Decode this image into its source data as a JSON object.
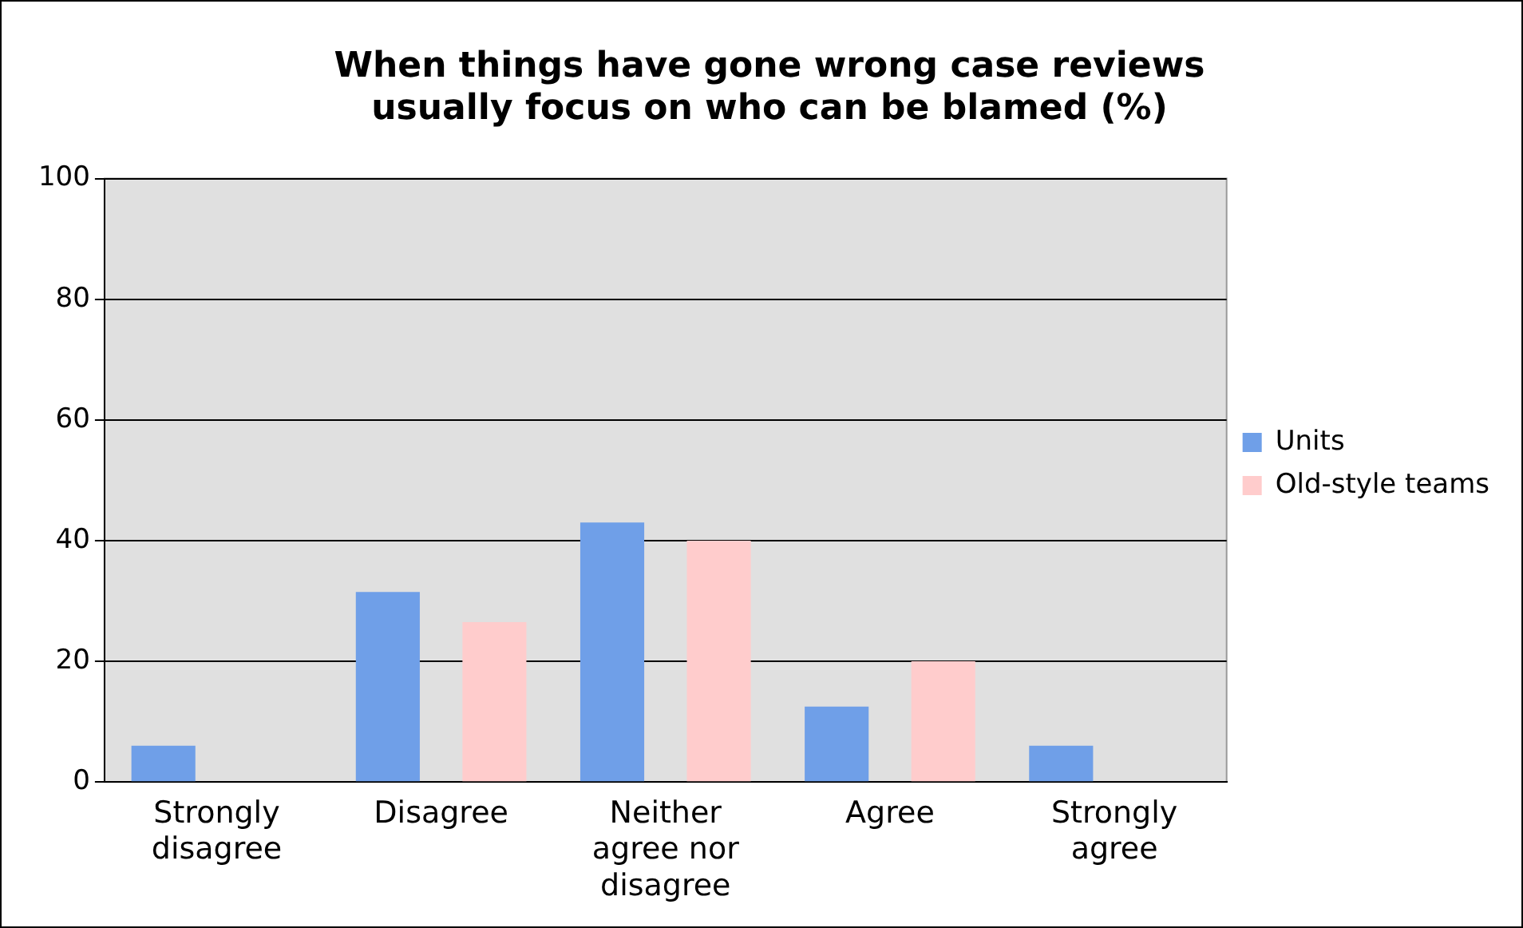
{
  "chart_data": {
    "type": "bar",
    "title": "When things have gone wrong case reviews usually focus on who can be blamed (%)",
    "categories": [
      "Strongly disagree",
      "Disagree",
      "Neither agree nor disagree",
      "Agree",
      "Strongly agree"
    ],
    "series": [
      {
        "name": "Units",
        "color": "#6f9fe8",
        "values": [
          6,
          31.5,
          43,
          12.5,
          6
        ]
      },
      {
        "name": "Old-style teams",
        "color": "#ffcccc",
        "values": [
          0,
          26.5,
          40,
          20,
          0
        ]
      }
    ],
    "ylim": [
      0,
      100
    ],
    "yticks": [
      0,
      20,
      40,
      60,
      80,
      100
    ],
    "grid": "y",
    "legend": "right"
  }
}
